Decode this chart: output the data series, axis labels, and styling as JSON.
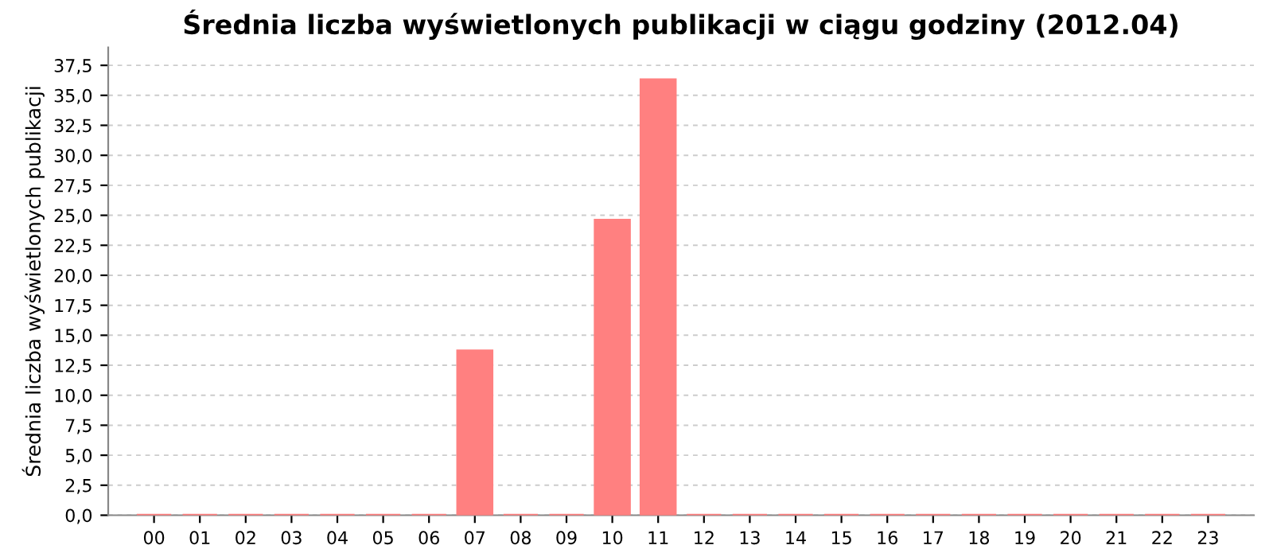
{
  "chart_data": {
    "type": "bar",
    "title": "Średnia liczba wyświetlonych publikacji w ciągu godziny (2012.04)",
    "ylabel": "Średnia liczba wyświetlonych publikacji",
    "categories": [
      "00",
      "01",
      "02",
      "03",
      "04",
      "05",
      "06",
      "07",
      "08",
      "09",
      "10",
      "11",
      "12",
      "13",
      "14",
      "15",
      "16",
      "17",
      "18",
      "19",
      "20",
      "21",
      "22",
      "23"
    ],
    "values": [
      0,
      0,
      0,
      0,
      0,
      0,
      0,
      13.7,
      0,
      0,
      24.6,
      36.3,
      0,
      0,
      0,
      0,
      0,
      0,
      0,
      0,
      0,
      0,
      0,
      0
    ],
    "color": "#ff8080",
    "ylim": [
      0,
      39
    ],
    "yticks": [
      {
        "value": 0,
        "label": "0,0"
      },
      {
        "value": 2.5,
        "label": "2,5"
      },
      {
        "value": 5,
        "label": "5,0"
      },
      {
        "value": 7.5,
        "label": "7,5"
      },
      {
        "value": 10,
        "label": "10,0"
      },
      {
        "value": 12.5,
        "label": "12,5"
      },
      {
        "value": 15,
        "label": "15,0"
      },
      {
        "value": 17.5,
        "label": "17,5"
      },
      {
        "value": 20,
        "label": "20,0"
      },
      {
        "value": 22.5,
        "label": "22,5"
      },
      {
        "value": 25,
        "label": "25,0"
      },
      {
        "value": 27.5,
        "label": "27,5"
      },
      {
        "value": 30,
        "label": "30,0"
      },
      {
        "value": 32.5,
        "label": "32,5"
      },
      {
        "value": 35,
        "label": "35,0"
      },
      {
        "value": 37.5,
        "label": "37,5"
      }
    ],
    "grid": "y"
  }
}
